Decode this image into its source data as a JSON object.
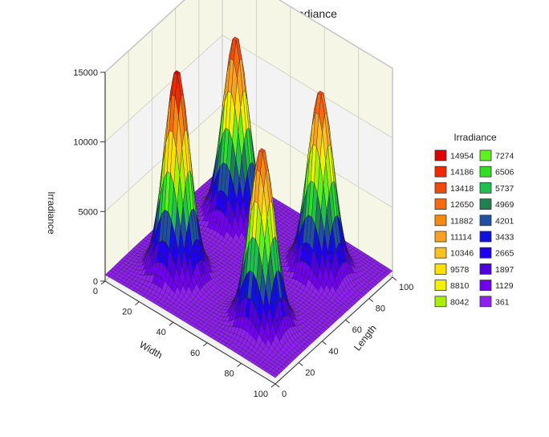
{
  "chart_data": {
    "type": "surface",
    "title": "Surface Plot of Irradiance",
    "xlabel": "Width",
    "ylabel": "Length",
    "zlabel": "Irradiance",
    "xlim": [
      0,
      100
    ],
    "ylim": [
      0,
      100
    ],
    "zlim": [
      0,
      15000
    ],
    "x_ticks": [
      "0",
      "20",
      "40",
      "60",
      "80",
      "100"
    ],
    "y_ticks": [
      "0",
      "20",
      "40",
      "60",
      "80",
      "100"
    ],
    "z_ticks": [
      "0",
      "5000",
      "10000",
      "15000"
    ],
    "peaks": [
      {
        "x": 25,
        "y": 25,
        "z": 14954
      },
      {
        "x": 25,
        "y": 75,
        "z": 13500
      },
      {
        "x": 75,
        "y": 25,
        "z": 13000
      },
      {
        "x": 75,
        "y": 75,
        "z": 13300
      }
    ],
    "base_level": 361,
    "legend": {
      "title": "Irradiance",
      "position": "right",
      "entries": [
        {
          "label": "14954",
          "color": "#e00000"
        },
        {
          "label": "14186",
          "color": "#f02a00"
        },
        {
          "label": "13418",
          "color": "#f04a10"
        },
        {
          "label": "12650",
          "color": "#f56a10"
        },
        {
          "label": "11882",
          "color": "#f88a10"
        },
        {
          "label": "11114",
          "color": "#fba020"
        },
        {
          "label": "10346",
          "color": "#fcc020"
        },
        {
          "label": "9578",
          "color": "#fee000"
        },
        {
          "label": "8810",
          "color": "#f0f000"
        },
        {
          "label": "8042",
          "color": "#a8f000"
        },
        {
          "label": "7274",
          "color": "#60f020"
        },
        {
          "label": "6506",
          "color": "#30e020"
        },
        {
          "label": "5737",
          "color": "#20c050"
        },
        {
          "label": "4969",
          "color": "#208050"
        },
        {
          "label": "4201",
          "color": "#2050a0"
        },
        {
          "label": "3433",
          "color": "#1010e0"
        },
        {
          "label": "2665",
          "color": "#2000f0"
        },
        {
          "label": "1897",
          "color": "#5000e0"
        },
        {
          "label": "1129",
          "color": "#7000f0"
        },
        {
          "label": "361",
          "color": "#9020f0"
        }
      ]
    }
  }
}
